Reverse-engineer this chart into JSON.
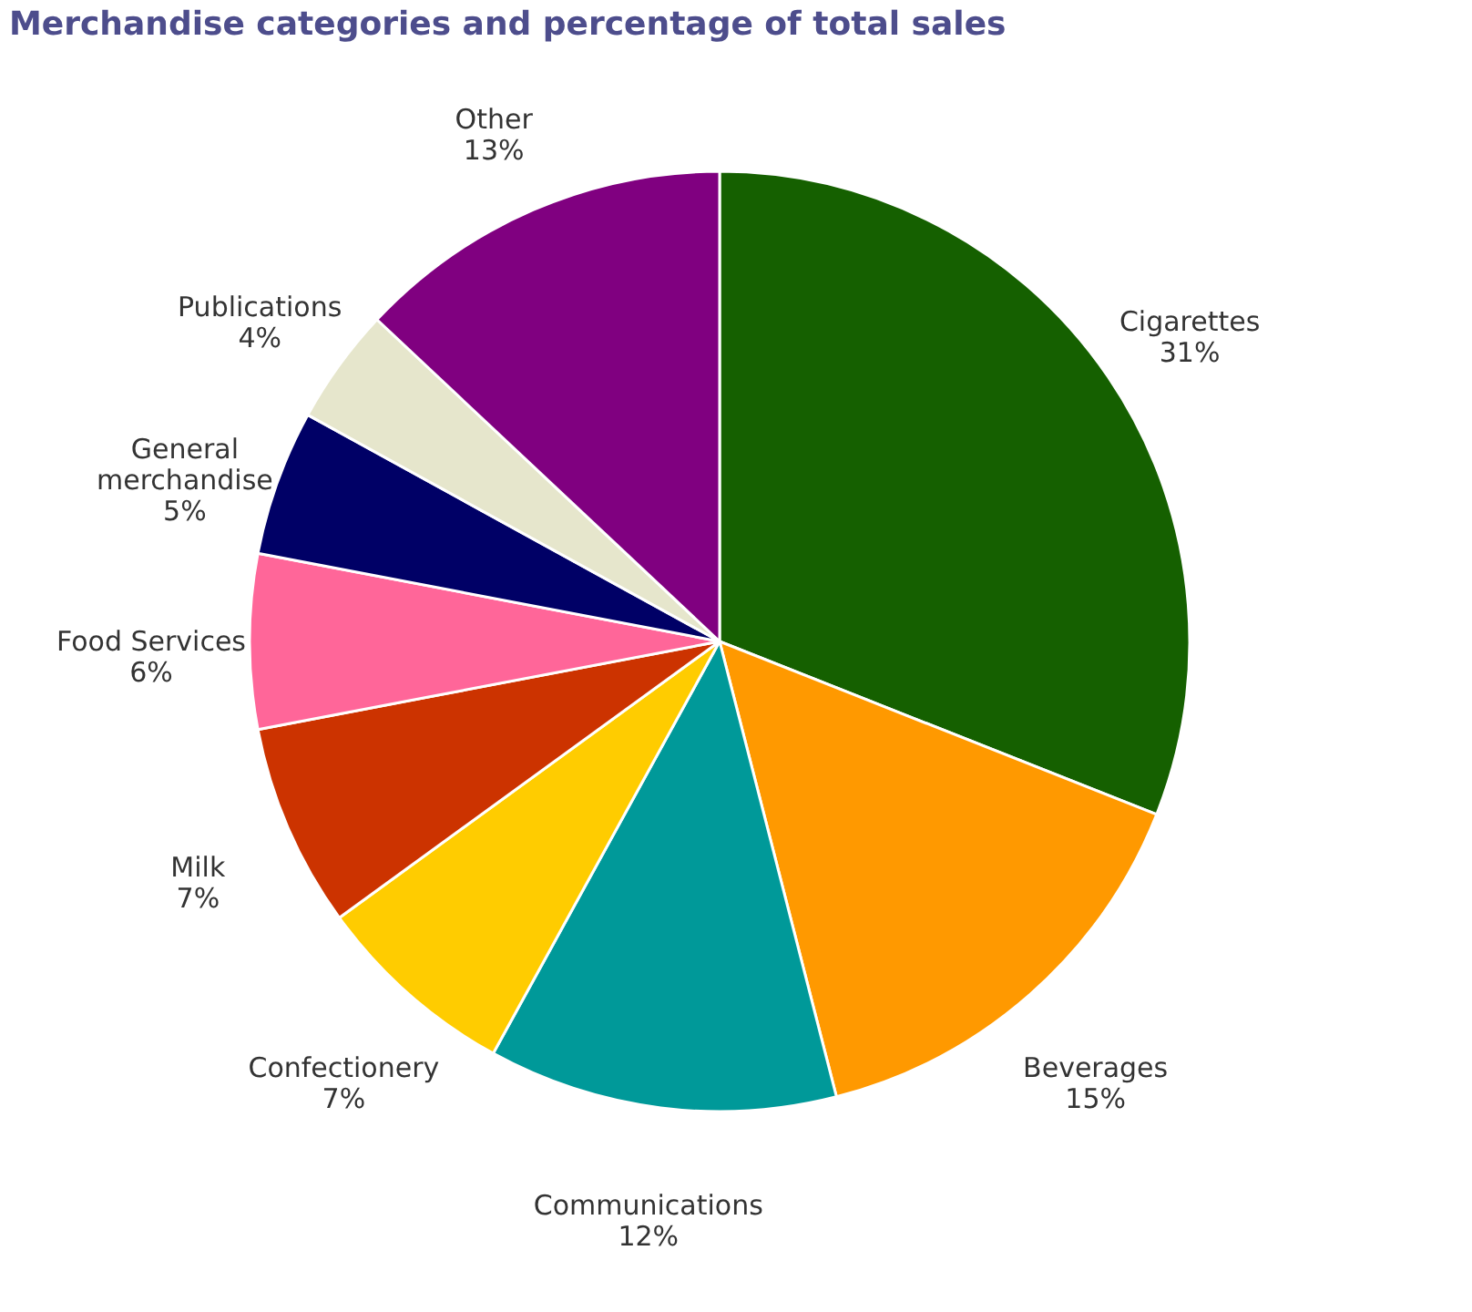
{
  "chart_data": {
    "type": "pie",
    "title": "Merchandise categories  and percentage  of total sales",
    "categories": [
      "Cigarettes",
      "Beverages",
      "Communications",
      "Confectionery",
      "Milk",
      "Food Services",
      "General merchandise",
      "Publications",
      "Other"
    ],
    "values": [
      31,
      15,
      12,
      7,
      7,
      6,
      5,
      4,
      13
    ],
    "value_labels": [
      "31%",
      "15%",
      "12%",
      "7%",
      "7%",
      "6%",
      "5%",
      "4%",
      "13%"
    ],
    "colors": [
      "#156000",
      "#ff9900",
      "#009999",
      "#ffcc00",
      "#cc3300",
      "#ff6699",
      "#000066",
      "#e6e6cc",
      "#800080"
    ],
    "legend": false
  }
}
